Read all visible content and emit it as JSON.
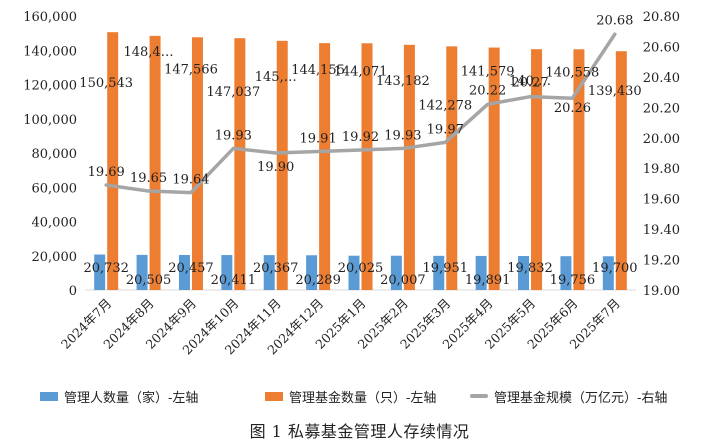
{
  "caption": "图 1  私募基金管理人存续情况",
  "colors": {
    "managers": "#5B9BD5",
    "funds": "#ED7D31",
    "scale": "#A5A5A5"
  },
  "chart_data": {
    "type": "bar",
    "categories": [
      "2024年7月",
      "2024年8月",
      "2024年9月",
      "2024年10月",
      "2024年11月",
      "2024年12月",
      "2025年1月",
      "2025年2月",
      "2025年3月",
      "2025年4月",
      "2025年5月",
      "2025年6月",
      "2025年7月"
    ],
    "left_axis": {
      "ylim": [
        0,
        160000
      ],
      "ticks": [
        "0",
        "20,000",
        "40,000",
        "60,000",
        "80,000",
        "100,000",
        "120,000",
        "140,000",
        "160,000"
      ]
    },
    "right_axis": {
      "ylim": [
        19.0,
        20.8
      ],
      "ticks": [
        "19.00",
        "19.20",
        "19.40",
        "19.60",
        "19.80",
        "20.00",
        "20.20",
        "20.40",
        "20.60",
        "20.80"
      ]
    },
    "series": [
      {
        "name": "管理人数量（家）-左轴",
        "type": "bar",
        "axis": "left",
        "values": [
          20732,
          20505,
          20457,
          20411,
          20367,
          20289,
          20025,
          20007,
          19951,
          19891,
          19832,
          19756,
          19700
        ],
        "labels": [
          "20,732",
          "20,505",
          "20,457",
          "20,411",
          "20,367",
          "20,289",
          "20,025",
          "20,007",
          "19,951",
          "19,891",
          "19,832",
          "19,756",
          "19,700"
        ]
      },
      {
        "name": "管理基金数量（只）-左轴",
        "type": "bar",
        "axis": "left",
        "values": [
          150543,
          148400,
          147566,
          147037,
          145500,
          144155,
          144071,
          143182,
          142278,
          141579,
          140600,
          140558,
          139430
        ],
        "labels": [
          "150,543",
          "148,4…",
          "147,566",
          "147,037",
          "145,…",
          "144,155",
          "144,071",
          "143,182",
          "142,278",
          "141,579",
          "140,…",
          "140,558",
          "139,430"
        ]
      },
      {
        "name": "管理基金规模（万亿元）-右轴",
        "type": "line",
        "axis": "right",
        "values": [
          19.69,
          19.65,
          19.64,
          19.93,
          19.9,
          19.91,
          19.92,
          19.93,
          19.97,
          20.22,
          20.27,
          20.26,
          20.68
        ],
        "labels": [
          "19.69",
          "19.65",
          "19.64",
          "19.93",
          "19.90",
          "19.91",
          "19.92",
          "19.93",
          "19.97",
          "20.22",
          "20.27",
          "20.26",
          "20.68"
        ]
      }
    ]
  }
}
